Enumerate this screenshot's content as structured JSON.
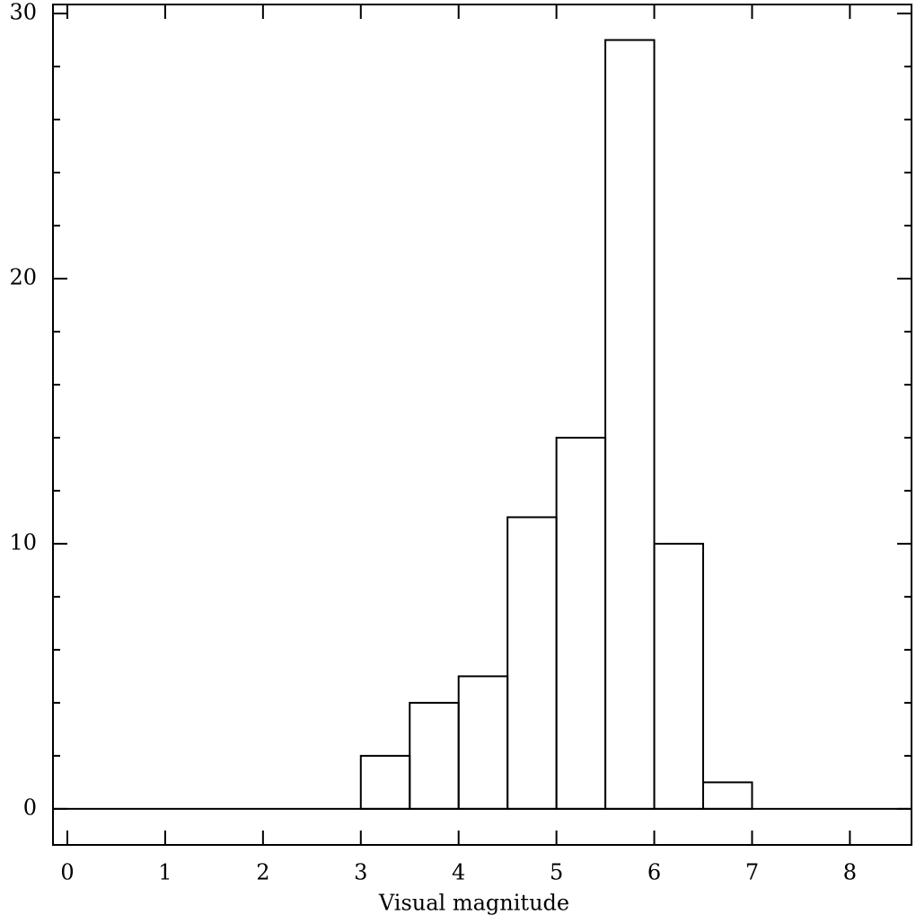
{
  "chart_data": {
    "type": "histogram",
    "xlabel": "Visual magnitude",
    "bins": [
      3,
      3.5,
      4,
      4.5,
      5,
      5.5,
      6,
      6.5,
      7
    ],
    "values": [
      2,
      4,
      5,
      11,
      14,
      29,
      10,
      1
    ],
    "color": "#000000",
    "xlim": [
      -0.147,
      8.63
    ],
    "ylim": [
      -1.36,
      30.34
    ],
    "xticks": [
      0,
      1,
      2,
      3,
      4,
      5,
      6,
      7,
      8
    ],
    "yticks": [
      0,
      10,
      20,
      30
    ],
    "yminor_ticks": [
      2,
      4,
      6,
      8,
      12,
      14,
      16,
      18,
      22,
      24,
      26,
      28
    ]
  }
}
